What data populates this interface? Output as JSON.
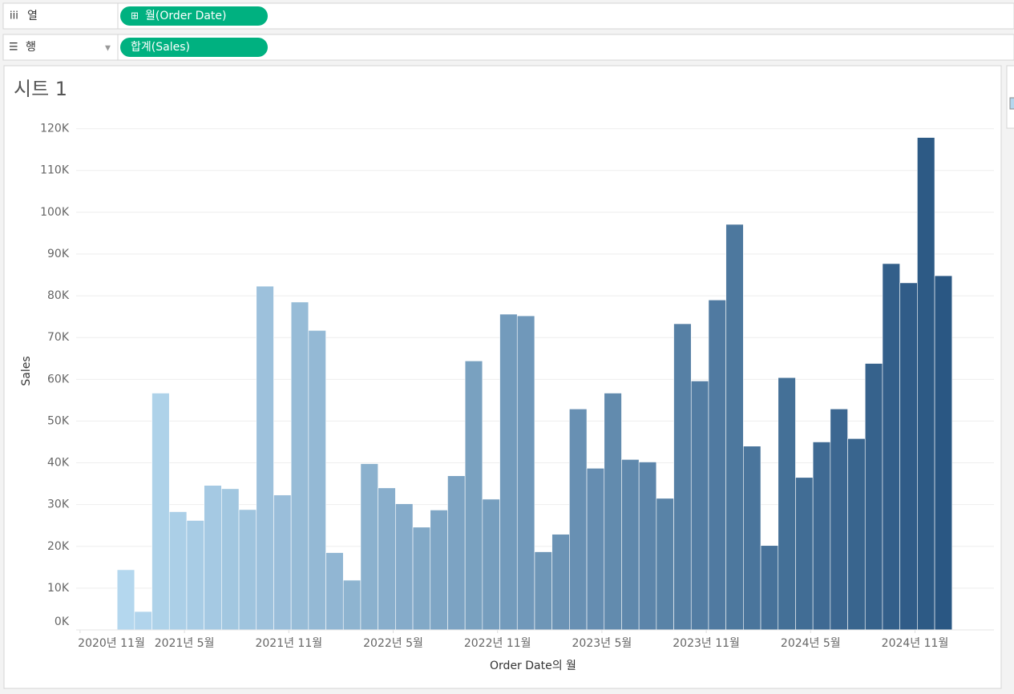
{
  "shelves": {
    "columns": {
      "label": "열",
      "pill": "월(Order Date)"
    },
    "rows": {
      "label": "행",
      "pill": "합계(Sales)"
    }
  },
  "chart_data": {
    "type": "bar",
    "title": "시트 1",
    "x_label": "Order Date의 월",
    "y_label": "Sales",
    "x": [
      "2021-02",
      "2021-03",
      "2021-04",
      "2021-05",
      "2021-06",
      "2021-07",
      "2021-08",
      "2021-09",
      "2021-10",
      "2021-11",
      "2021-12",
      "2022-01",
      "2022-02",
      "2022-03",
      "2022-04",
      "2022-05",
      "2022-06",
      "2022-07",
      "2022-08",
      "2022-09",
      "2022-10",
      "2022-11",
      "2022-12",
      "2023-01",
      "2023-02",
      "2023-03",
      "2023-04",
      "2023-05",
      "2023-06",
      "2023-07",
      "2023-08",
      "2023-09",
      "2023-10",
      "2023-11",
      "2023-12",
      "2024-01",
      "2024-02",
      "2024-03",
      "2024-04",
      "2024-05",
      "2024-06",
      "2024-07",
      "2024-08",
      "2024-09",
      "2024-10",
      "2024-11",
      "2024-12",
      "2025-01"
    ],
    "values": [
      14400,
      4400,
      56700,
      28300,
      26200,
      34600,
      33800,
      28800,
      82300,
      32300,
      78500,
      71700,
      18500,
      11900,
      39800,
      34000,
      30200,
      24600,
      28700,
      36900,
      64400,
      31300,
      75600,
      75200,
      18700,
      22900,
      52900,
      38700,
      56700,
      40800,
      40200,
      31500,
      73300,
      59600,
      79000,
      97100,
      44000,
      20200,
      60400,
      36500,
      45000,
      52900,
      45800,
      63800,
      87700,
      83100,
      117900,
      84800
    ],
    "color_range": [
      "#b4d7ee",
      "#2a5783"
    ],
    "ylim": [
      0,
      123000
    ],
    "yticks": [
      {
        "value": 0,
        "label": "0K"
      },
      {
        "value": 10000,
        "label": "10K"
      },
      {
        "value": 20000,
        "label": "20K"
      },
      {
        "value": 30000,
        "label": "30K"
      },
      {
        "value": 40000,
        "label": "40K"
      },
      {
        "value": 50000,
        "label": "50K"
      },
      {
        "value": 60000,
        "label": "60K"
      },
      {
        "value": 70000,
        "label": "70K"
      },
      {
        "value": 80000,
        "label": "80K"
      },
      {
        "value": 90000,
        "label": "90K"
      },
      {
        "value": 100000,
        "label": "100K"
      },
      {
        "value": 110000,
        "label": "110K"
      },
      {
        "value": 120000,
        "label": "120K"
      }
    ],
    "xticks": [
      {
        "value": "2020-11",
        "label": "2020년 11월"
      },
      {
        "value": "2021-05",
        "label": "2021년 5월"
      },
      {
        "value": "2021-11",
        "label": "2021년 11월"
      },
      {
        "value": "2022-05",
        "label": "2022년 5월"
      },
      {
        "value": "2022-11",
        "label": "2022년 11월"
      },
      {
        "value": "2023-05",
        "label": "2023년 5월"
      },
      {
        "value": "2023-11",
        "label": "2023년 11월"
      },
      {
        "value": "2024-05",
        "label": "2024년 5월"
      },
      {
        "value": "2024-11",
        "label": "2024년 11월"
      }
    ],
    "grid": true
  }
}
